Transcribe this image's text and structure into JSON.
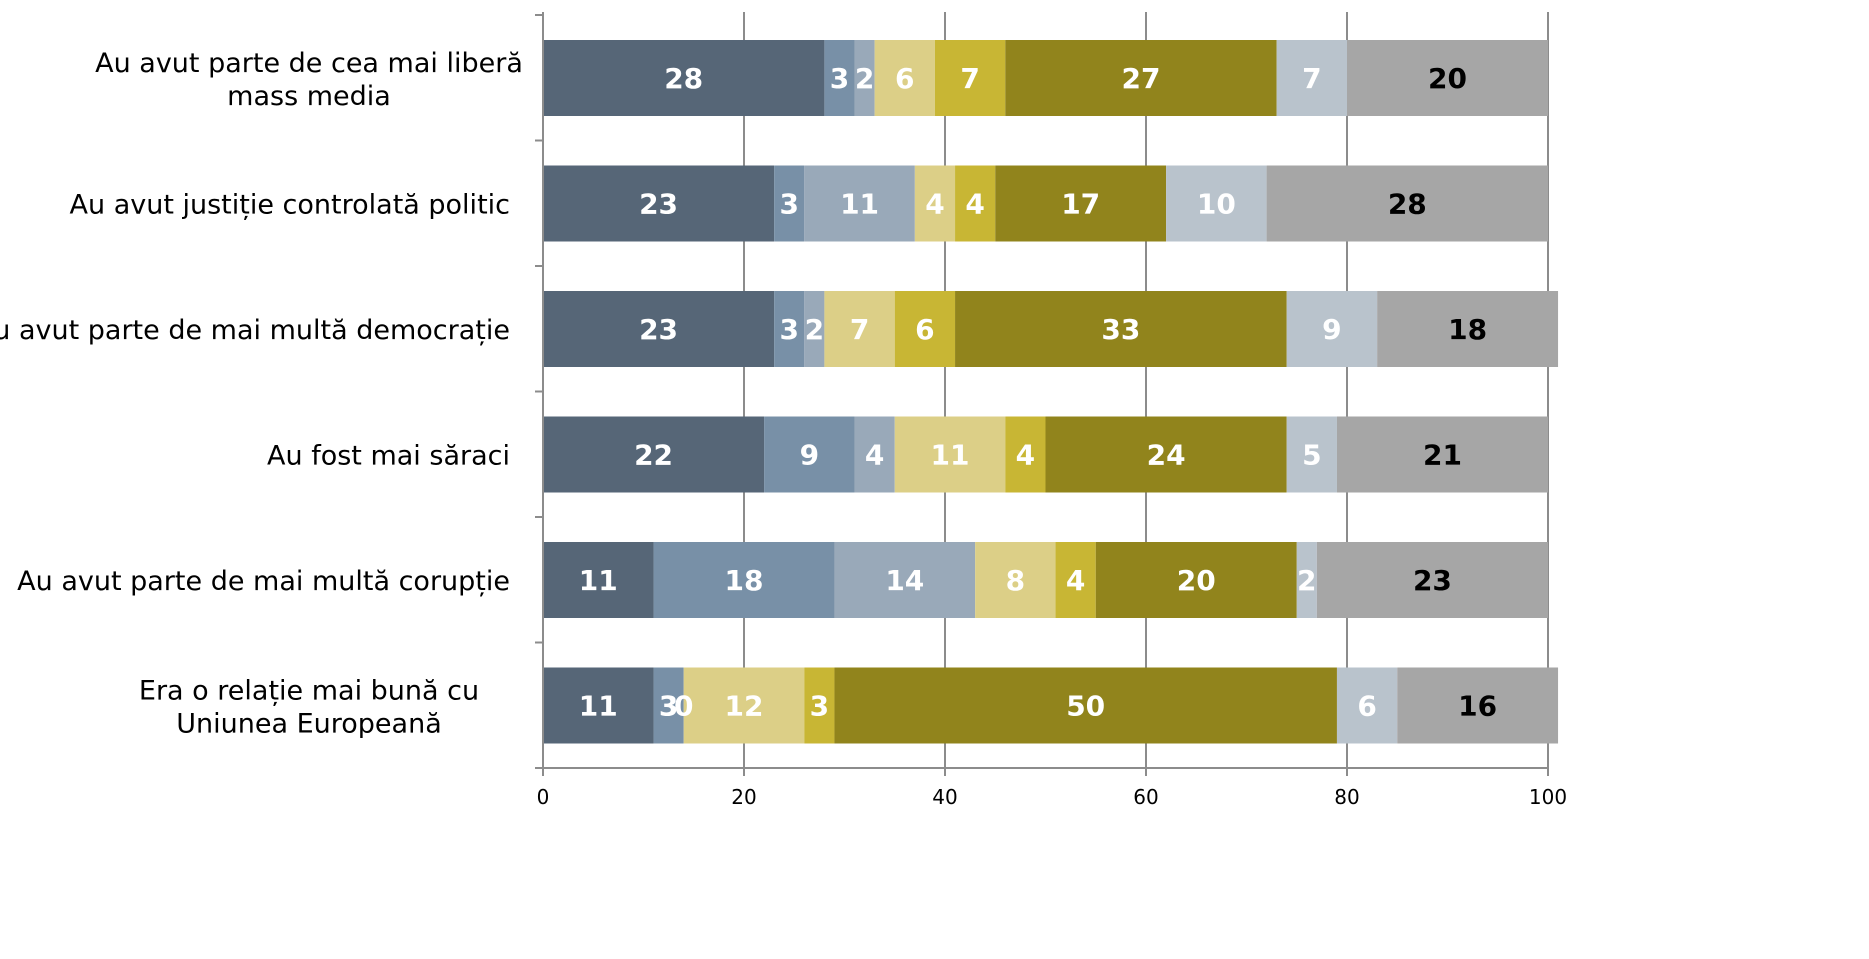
{
  "chart_data": {
    "type": "bar",
    "orientation": "horizontal",
    "stacked": true,
    "categories": [
      [
        "Au avut parte de cea mai liberă",
        "mass media"
      ],
      [
        "Au avut justiție controlată politic"
      ],
      [
        "Au avut parte de mai multă democrație"
      ],
      [
        "Au fost mai săraci"
      ],
      [
        "Au avut parte de mai multă corupție"
      ],
      [
        "Era o relație mai bună cu",
        "Uniunea Europeană"
      ]
    ],
    "series": [
      {
        "color": "#566677",
        "label_color": "#ffffff",
        "values": [
          28,
          23,
          23,
          22,
          11,
          11
        ]
      },
      {
        "color": "#7890a7",
        "label_color": "#ffffff",
        "values": [
          3,
          3,
          3,
          9,
          18,
          3
        ]
      },
      {
        "color": "#99a9b9",
        "label_color": "#ffffff",
        "values": [
          2,
          11,
          2,
          4,
          14,
          0
        ]
      },
      {
        "color": "#dccf87",
        "label_color": "#ffffff",
        "values": [
          6,
          4,
          7,
          11,
          8,
          12
        ]
      },
      {
        "color": "#c8b634",
        "label_color": "#ffffff",
        "values": [
          7,
          4,
          6,
          4,
          4,
          3
        ]
      },
      {
        "color": "#91841c",
        "label_color": "#ffffff",
        "values": [
          27,
          17,
          33,
          24,
          20,
          50
        ]
      },
      {
        "color": "#b9c3cc",
        "label_color": "#ffffff",
        "values": [
          7,
          10,
          9,
          5,
          2,
          6
        ]
      },
      {
        "color": "#a6a6a6",
        "label_color": "#000000",
        "values": [
          20,
          28,
          18,
          21,
          23,
          16
        ]
      }
    ],
    "xlim": [
      0,
      100
    ],
    "xticks": [
      0,
      20,
      40,
      60,
      80,
      100
    ],
    "grid": "vertical",
    "legend": "none"
  }
}
